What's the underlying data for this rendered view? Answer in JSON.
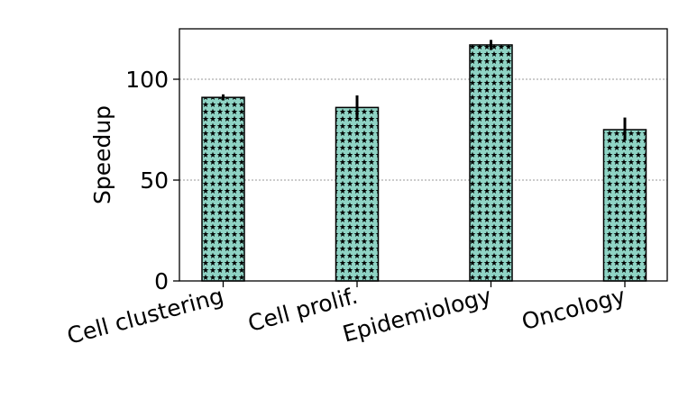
{
  "chart_data": {
    "type": "bar",
    "title": "",
    "xlabel": "",
    "ylabel": "Speedup",
    "ylim": [
      0,
      125
    ],
    "yticks": [
      0,
      50,
      100
    ],
    "ytick_labels": [
      "0",
      "50",
      "100"
    ],
    "grid": "y-dotted",
    "categories": [
      "Cell clustering",
      "Cell prolif.",
      "Epidemiology",
      "Oncology"
    ],
    "values": [
      91,
      86,
      117,
      75
    ],
    "errors": [
      [
        89.5,
        92.5
      ],
      [
        80.5,
        92
      ],
      [
        114.5,
        119.5
      ],
      [
        70,
        81
      ]
    ],
    "bar_color": "#8fd4c5",
    "hatch": "stars"
  }
}
